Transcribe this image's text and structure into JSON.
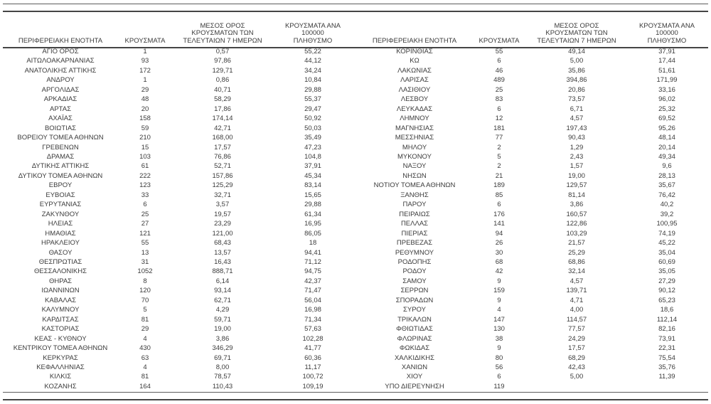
{
  "page": {
    "background": "#ffffff",
    "text_color": "#3b3b3b",
    "rule_color_thin": "#5c5c5c",
    "rule_color_thick": "#454545"
  },
  "table": {
    "headers": {
      "region": "ΠΕΡΙΦΕΡΕΙΑΚΗ ΕΝΟΤΗΤΑ",
      "cases": "ΚΡΟΥΣΜΑΤΑ",
      "avg7": "ΜΕΣΟΣ ΟΡΟΣ\nΚΡΟΥΣΜΑΤΩΝ ΤΩΝ\nΤΕΛΕΥΤΑΙΩΝ 7 ΗΜΕΡΩΝ",
      "per100k": "ΚΡΟΥΣΜΑΤΑ ΑΝΑ 100000\nΠΛΗΘΥΣΜΟ"
    },
    "left_rows": [
      [
        "ΑΓΙΟ ΟΡΟΣ",
        "1",
        "0,57",
        "55,22"
      ],
      [
        "ΑΙΤΩΛΟΑΚΑΡΝΑΝΙΑΣ",
        "93",
        "97,86",
        "44,12"
      ],
      [
        "ΑΝΑΤΟΛΙΚΗΣ ΑΤΤΙΚΗΣ",
        "172",
        "129,71",
        "34,24"
      ],
      [
        "ΑΝΔΡΟΥ",
        "1",
        "0,86",
        "10,84"
      ],
      [
        "ΑΡΓΟΛΙΔΑΣ",
        "29",
        "40,71",
        "29,88"
      ],
      [
        "ΑΡΚΑΔΙΑΣ",
        "48",
        "58,29",
        "55,37"
      ],
      [
        "ΑΡΤΑΣ",
        "20",
        "17,86",
        "29,47"
      ],
      [
        "ΑΧΑΪΑΣ",
        "158",
        "174,14",
        "50,92"
      ],
      [
        "ΒΟΙΩΤΙΑΣ",
        "59",
        "42,71",
        "50,03"
      ],
      [
        "ΒΟΡΕΙΟΥ ΤΟΜΕΑ ΑΘΗΝΩΝ",
        "210",
        "168,00",
        "35,49"
      ],
      [
        "ΓΡΕΒΕΝΩΝ",
        "15",
        "17,57",
        "47,23"
      ],
      [
        "ΔΡΑΜΑΣ",
        "103",
        "76,86",
        "104,8"
      ],
      [
        "ΔΥΤΙΚΗΣ ΑΤΤΙΚΗΣ",
        "61",
        "52,71",
        "37,91"
      ],
      [
        "ΔΥΤΙΚΟΥ ΤΟΜΕΑ ΑΘΗΝΩΝ",
        "222",
        "157,86",
        "45,34"
      ],
      [
        "ΕΒΡΟΥ",
        "123",
        "125,29",
        "83,14"
      ],
      [
        "ΕΥΒΟΙΑΣ",
        "33",
        "32,71",
        "15,65"
      ],
      [
        "ΕΥΡΥΤΑΝΙΑΣ",
        "6",
        "3,57",
        "29,88"
      ],
      [
        "ΖΑΚΥΝΘΟΥ",
        "25",
        "19,57",
        "61,34"
      ],
      [
        "ΗΛΕΙΑΣ",
        "27",
        "23,29",
        "16,95"
      ],
      [
        "ΗΜΑΘΙΑΣ",
        "121",
        "121,00",
        "86,05"
      ],
      [
        "ΗΡΑΚΛΕΙΟΥ",
        "55",
        "68,43",
        "18"
      ],
      [
        "ΘΑΣΟΥ",
        "13",
        "13,57",
        "94,41"
      ],
      [
        "ΘΕΣΠΡΩΤΙΑΣ",
        "31",
        "16,43",
        "71,12"
      ],
      [
        "ΘΕΣΣΑΛΟΝΙΚΗΣ",
        "1052",
        "888,71",
        "94,75"
      ],
      [
        "ΘΗΡΑΣ",
        "8",
        "6,14",
        "42,37"
      ],
      [
        "ΙΩΑΝΝΙΝΩΝ",
        "120",
        "93,14",
        "71,47"
      ],
      [
        "ΚΑΒΑΛΑΣ",
        "70",
        "62,71",
        "56,04"
      ],
      [
        "ΚΑΛΥΜΝΟΥ",
        "5",
        "4,29",
        "16,98"
      ],
      [
        "ΚΑΡΔΙΤΣΑΣ",
        "81",
        "59,71",
        "71,34"
      ],
      [
        "ΚΑΣΤΟΡΙΑΣ",
        "29",
        "19,00",
        "57,63"
      ],
      [
        "ΚΕΑΣ - ΚΥΘΝΟΥ",
        "4",
        "3,86",
        "102,28"
      ],
      [
        "ΚΕΝΤΡΙΚΟΥ ΤΟΜΕΑ ΑΘΗΝΩΝ",
        "430",
        "346,29",
        "41,77"
      ],
      [
        "ΚΕΡΚΥΡΑΣ",
        "63",
        "69,71",
        "60,36"
      ],
      [
        "ΚΕΦΑΛΛΗΝΙΑΣ",
        "4",
        "8,00",
        "11,17"
      ],
      [
        "ΚΙΛΚΙΣ",
        "81",
        "78,57",
        "100,72"
      ],
      [
        "ΚΟΖΑΝΗΣ",
        "164",
        "110,43",
        "109,19"
      ]
    ],
    "right_rows": [
      [
        "ΚΟΡΙΝΘΙΑΣ",
        "55",
        "49,14",
        "37,91"
      ],
      [
        "ΚΩ",
        "6",
        "5,00",
        "17,44"
      ],
      [
        "ΛΑΚΩΝΙΑΣ",
        "46",
        "35,86",
        "51,61"
      ],
      [
        "ΛΑΡΙΣΑΣ",
        "489",
        "394,86",
        "171,99"
      ],
      [
        "ΛΑΣΙΘΙΟΥ",
        "25",
        "20,86",
        "33,16"
      ],
      [
        "ΛΕΣΒΟΥ",
        "83",
        "73,57",
        "96,02"
      ],
      [
        "ΛΕΥΚΑΔΑΣ",
        "6",
        "6,71",
        "25,32"
      ],
      [
        "ΛΗΜΝΟΥ",
        "12",
        "4,57",
        "69,52"
      ],
      [
        "ΜΑΓΝΗΣΙΑΣ",
        "181",
        "197,43",
        "95,26"
      ],
      [
        "ΜΕΣΣΗΝΙΑΣ",
        "77",
        "90,43",
        "48,14"
      ],
      [
        "ΜΗΛΟΥ",
        "2",
        "1,29",
        "20,14"
      ],
      [
        "ΜΥΚΟΝΟΥ",
        "5",
        "2,43",
        "49,34"
      ],
      [
        "ΝΑΞΟΥ",
        "2",
        "1,57",
        "9,6"
      ],
      [
        "ΝΗΣΩΝ",
        "21",
        "19,00",
        "28,13"
      ],
      [
        "ΝΟΤΙΟΥ ΤΟΜΕΑ ΑΘΗΝΩΝ",
        "189",
        "129,57",
        "35,67"
      ],
      [
        "ΞΑΝΘΗΣ",
        "85",
        "81,14",
        "76,42"
      ],
      [
        "ΠΑΡΟΥ",
        "6",
        "3,86",
        "40,2"
      ],
      [
        "ΠΕΙΡΑΙΩΣ",
        "176",
        "160,57",
        "39,2"
      ],
      [
        "ΠΕΛΛΑΣ",
        "141",
        "122,86",
        "100,95"
      ],
      [
        "ΠΙΕΡΙΑΣ",
        "94",
        "103,29",
        "74,19"
      ],
      [
        "ΠΡΕΒΕΖΑΣ",
        "26",
        "21,57",
        "45,22"
      ],
      [
        "ΡΕΘΥΜΝΟΥ",
        "30",
        "25,29",
        "35,04"
      ],
      [
        "ΡΟΔΟΠΗΣ",
        "68",
        "68,86",
        "60,69"
      ],
      [
        "ΡΟΔΟΥ",
        "42",
        "32,14",
        "35,05"
      ],
      [
        "ΣΑΜΟΥ",
        "9",
        "4,57",
        "27,29"
      ],
      [
        "ΣΕΡΡΩΝ",
        "159",
        "139,71",
        "90,12"
      ],
      [
        "ΣΠΟΡΑΔΩΝ",
        "9",
        "4,71",
        "65,23"
      ],
      [
        "ΣΥΡΟΥ",
        "4",
        "4,00",
        "18,6"
      ],
      [
        "ΤΡΙΚΑΛΩΝ",
        "147",
        "114,57",
        "112,14"
      ],
      [
        "ΦΘΙΩΤΙΔΑΣ",
        "130",
        "77,57",
        "82,16"
      ],
      [
        "ΦΛΩΡΙΝΑΣ",
        "38",
        "24,29",
        "73,91"
      ],
      [
        "ΦΩΚΙΔΑΣ",
        "9",
        "17,57",
        "22,31"
      ],
      [
        "ΧΑΛΚΙΔΙΚΗΣ",
        "80",
        "68,29",
        "75,54"
      ],
      [
        "ΧΑΝΙΩΝ",
        "56",
        "42,43",
        "35,76"
      ],
      [
        "ΧΙΟΥ",
        "6",
        "5,00",
        "11,39"
      ],
      [
        "ΥΠΟ ΔΙΕΡΕΥΝΗΣΗ",
        "119",
        "",
        ""
      ]
    ]
  }
}
